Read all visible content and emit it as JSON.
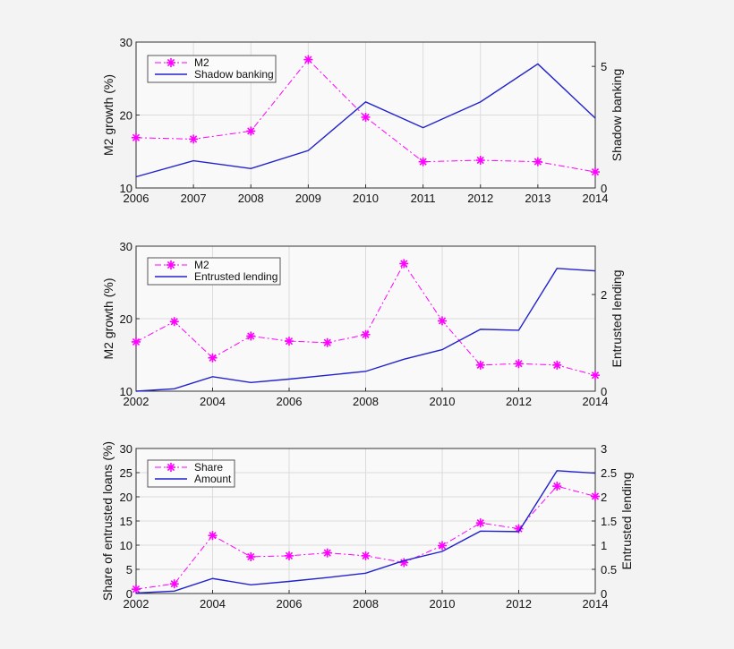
{
  "chart_data": [
    {
      "type": "line",
      "x": [
        2006,
        2007,
        2008,
        2009,
        2010,
        2011,
        2012,
        2013,
        2014
      ],
      "xticks": [
        "2006",
        "2007",
        "2008",
        "2009",
        "2010",
        "2011",
        "2012",
        "2013",
        "2014"
      ],
      "xlim": [
        2006,
        2014
      ],
      "ylabel": "M2 growth (%)",
      "ylim": [
        10,
        30
      ],
      "yticks": [
        "10",
        "20",
        "30"
      ],
      "y2label": "Shadow banking",
      "y2lim": [
        0,
        6
      ],
      "y2ticks": [
        "0",
        "5"
      ],
      "grid": true,
      "legend_position": "top-left",
      "series": [
        {
          "name": "M2",
          "axis": "left",
          "style": "dash-dot with asterisk markers",
          "color": "#ff00ff",
          "values": [
            16.9,
            16.7,
            17.8,
            27.6,
            19.7,
            13.6,
            13.8,
            13.6,
            12.2
          ]
        },
        {
          "name": "Shadow banking",
          "axis": "right",
          "style": "solid",
          "color": "#2222cc",
          "values": [
            0.46,
            1.12,
            0.8,
            1.54,
            3.54,
            2.48,
            3.54,
            5.1,
            2.87
          ]
        }
      ]
    },
    {
      "type": "line",
      "x": [
        2002,
        2003,
        2004,
        2005,
        2006,
        2007,
        2008,
        2009,
        2010,
        2011,
        2012,
        2013,
        2014
      ],
      "xticks": [
        "2002",
        "2004",
        "2006",
        "2008",
        "2010",
        "2012",
        "2014"
      ],
      "xlim": [
        2002,
        2014
      ],
      "ylabel": "M2 growth (%)",
      "ylim": [
        10,
        30
      ],
      "yticks": [
        "10",
        "20",
        "30"
      ],
      "y2label": "Entrusted lending",
      "y2lim": [
        0,
        3
      ],
      "y2ticks": [
        "0",
        "2"
      ],
      "grid": true,
      "legend_position": "top-left",
      "series": [
        {
          "name": "M2",
          "axis": "left",
          "style": "dash-dot with asterisk markers",
          "color": "#ff00ff",
          "values": [
            16.8,
            19.6,
            14.6,
            17.6,
            16.9,
            16.7,
            17.8,
            27.6,
            19.7,
            13.6,
            13.8,
            13.6,
            12.2
          ]
        },
        {
          "name": "Entrusted lending",
          "axis": "right",
          "style": "solid",
          "color": "#2222cc",
          "values": [
            0.0,
            0.05,
            0.3,
            0.18,
            0.25,
            0.33,
            0.41,
            0.66,
            0.86,
            1.28,
            1.26,
            2.54,
            2.49
          ]
        }
      ]
    },
    {
      "type": "line",
      "x": [
        2002,
        2003,
        2004,
        2005,
        2006,
        2007,
        2008,
        2009,
        2010,
        2011,
        2012,
        2013,
        2014
      ],
      "xticks": [
        "2002",
        "2004",
        "2006",
        "2008",
        "2010",
        "2012",
        "2014"
      ],
      "xlim": [
        2002,
        2014
      ],
      "ylabel": "Share of entrusted loans (%)",
      "ylim": [
        0,
        30
      ],
      "yticks": [
        "0",
        "5",
        "10",
        "15",
        "20",
        "25",
        "30"
      ],
      "y2label": "Entrusted lending",
      "y2lim": [
        0,
        3
      ],
      "y2ticks": [
        "0",
        "0.5",
        "1",
        "1.5",
        "2",
        "2.5",
        "3"
      ],
      "grid": true,
      "legend_position": "top-left",
      "series": [
        {
          "name": "Share",
          "axis": "left",
          "style": "dash-dot with asterisk markers",
          "color": "#ff00ff",
          "values": [
            0.9,
            2.0,
            12.0,
            7.6,
            7.8,
            8.4,
            7.8,
            6.4,
            9.9,
            14.6,
            13.4,
            22.2,
            20.1
          ]
        },
        {
          "name": "Amount",
          "axis": "right",
          "style": "solid",
          "color": "#2222cc",
          "values": [
            0.01,
            0.05,
            0.31,
            0.18,
            0.25,
            0.33,
            0.42,
            0.68,
            0.87,
            1.29,
            1.28,
            2.54,
            2.49
          ]
        }
      ]
    }
  ]
}
